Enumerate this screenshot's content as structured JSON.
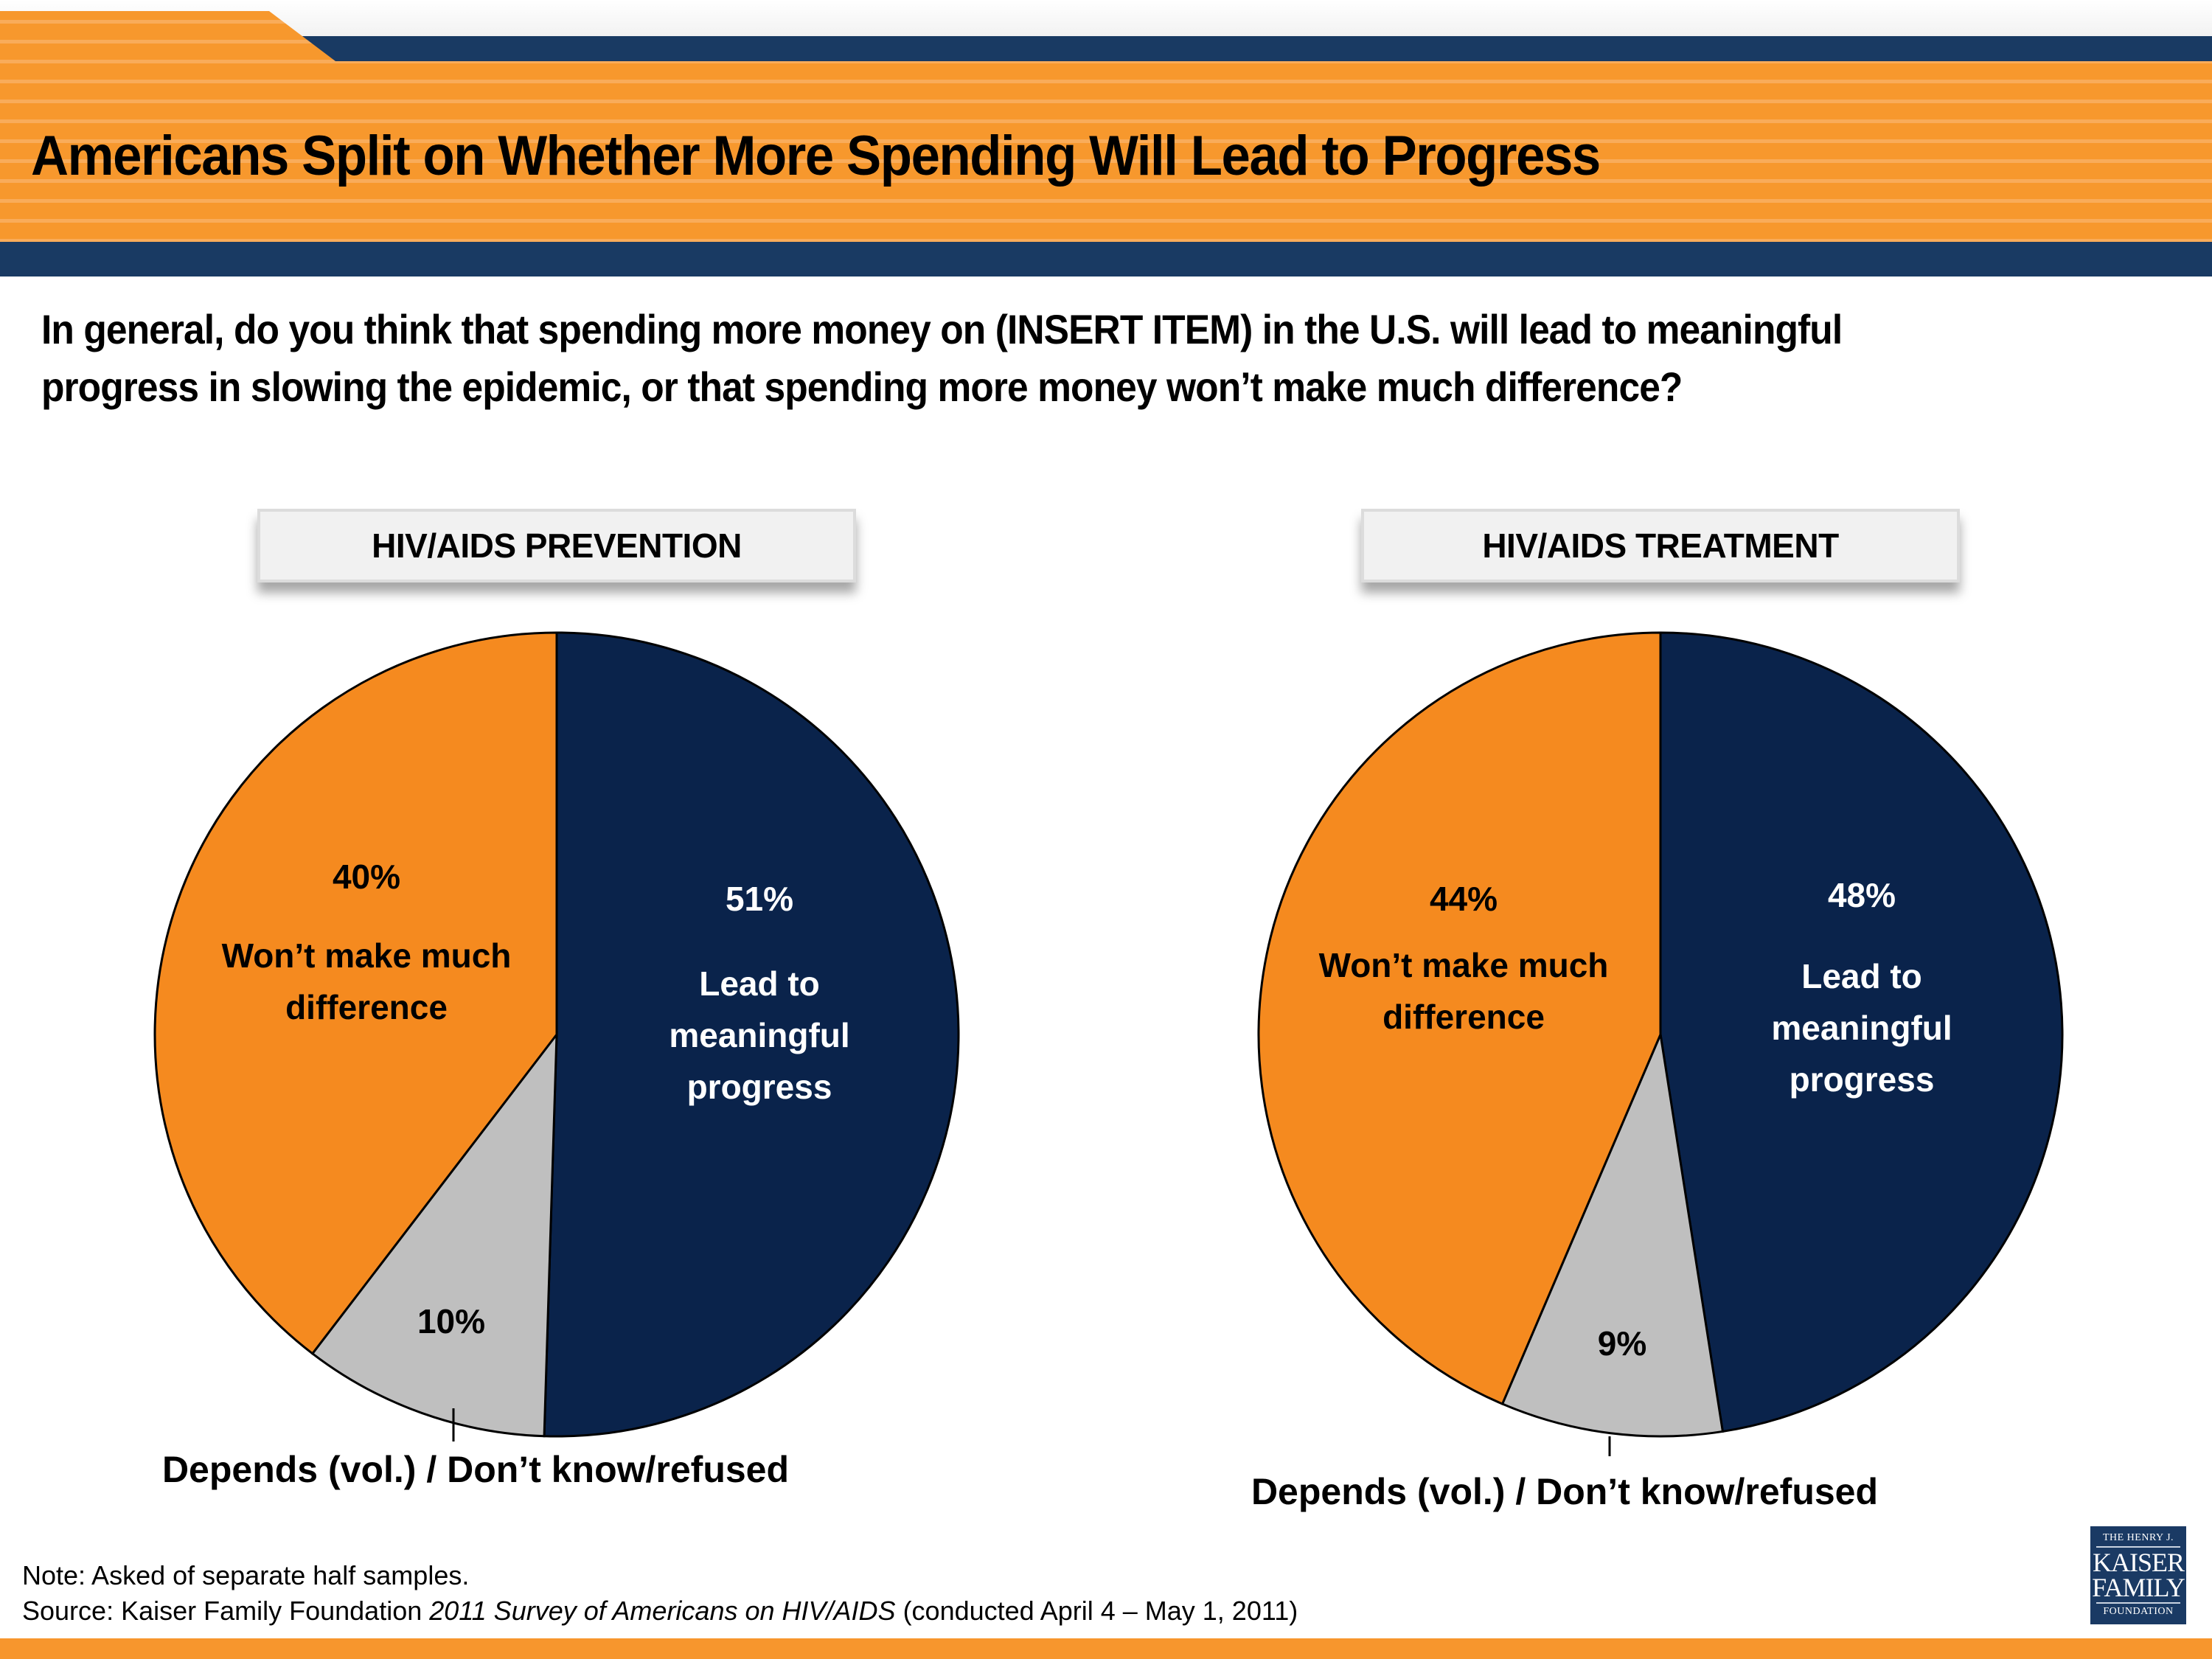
{
  "header": {
    "title": "Americans Split on Whether More Spending Will Lead to Progress"
  },
  "question": {
    "line1": "In general, do you think that spending more money on (INSERT ITEM) in the U.S. will lead to meaningful",
    "line2": "progress in slowing the epidemic, or that spending more money won’t make much difference?"
  },
  "colors": {
    "orange": "#f58a1f",
    "navy": "#0a234b",
    "gray": "#bfbfbf",
    "header_orange": "#f7982d",
    "header_navy": "#193a63"
  },
  "chart_data": [
    {
      "type": "pie",
      "title": "HIV/AIDS PREVENTION",
      "start": "12 o'clock, clockwise",
      "slices": [
        {
          "name": "Lead to meaningful progress",
          "value": 51,
          "label": "51%",
          "text": [
            "Lead to",
            "meaningful",
            "progress"
          ],
          "color": "#0a234b"
        },
        {
          "name": "Depends (vol.) / Don’t know/refused",
          "value": 10,
          "label": "10%",
          "text": [],
          "color": "#bfbfbf"
        },
        {
          "name": "Won’t make much difference",
          "value": 40,
          "label": "40%",
          "text": [
            "Won’t make much",
            "difference"
          ],
          "color": "#f58a1f"
        }
      ],
      "callout": "Depends (vol.) / Don’t know/refused"
    },
    {
      "type": "pie",
      "title": "HIV/AIDS TREATMENT",
      "start": "12 o'clock, clockwise",
      "slices": [
        {
          "name": "Lead to meaningful progress",
          "value": 48,
          "label": "48%",
          "text": [
            "Lead to",
            "meaningful",
            "progress"
          ],
          "color": "#0a234b"
        },
        {
          "name": "Depends (vol.) / Don’t know/refused",
          "value": 9,
          "label": "9%",
          "text": [],
          "color": "#bfbfbf"
        },
        {
          "name": "Won’t make much difference",
          "value": 44,
          "label": "44%",
          "text": [
            "Won’t make much",
            "difference"
          ],
          "color": "#f58a1f"
        }
      ],
      "callout": "Depends (vol.) / Don’t know/refused"
    }
  ],
  "footer": {
    "note": "Note: Asked of separate half samples.",
    "source_prefix": "Source: Kaiser Family Foundation ",
    "source_italic": "2011 Survey of Americans on HIV/AIDS",
    "source_suffix": " (conducted April 4 – May 1, 2011)"
  },
  "logo": {
    "line1": "THE HENRY J.",
    "line2": "KAISER",
    "line3": "FAMILY",
    "line4": "FOUNDATION"
  }
}
